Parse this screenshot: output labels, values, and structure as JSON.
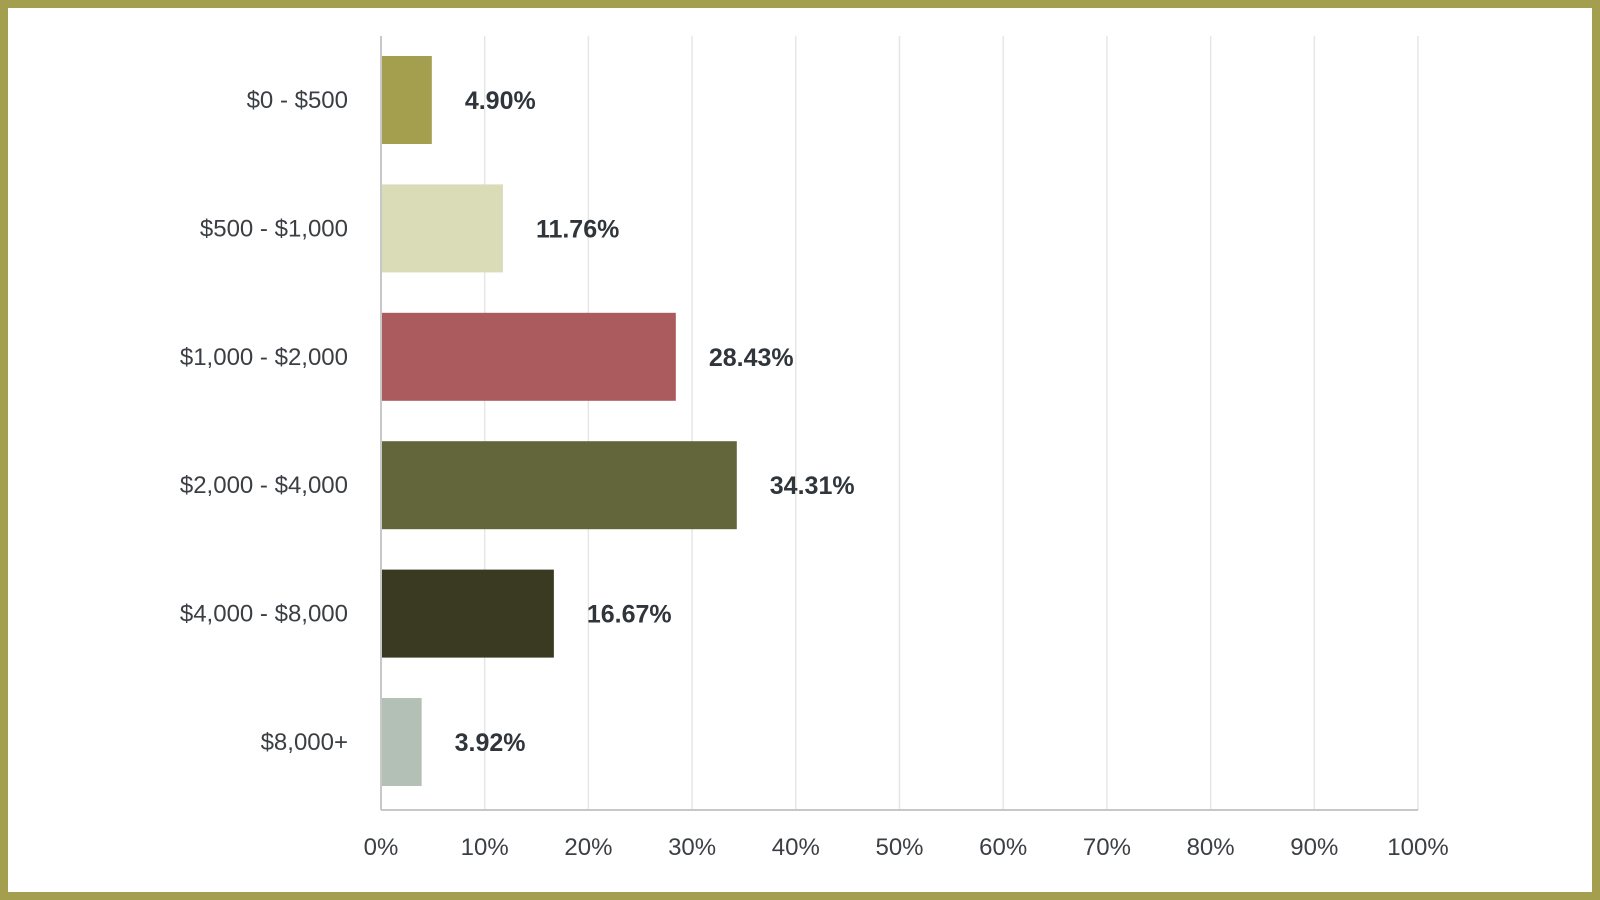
{
  "chart_data": {
    "type": "bar",
    "orientation": "horizontal",
    "title": "",
    "xlabel": "",
    "ylabel": "",
    "categories": [
      "$0 - $500",
      "$500 - $1,000",
      "$1,000 - $2,000",
      "$2,000 - $4,000",
      "$4,000 - $8,000",
      "$8,000+"
    ],
    "values": [
      4.9,
      11.76,
      28.43,
      34.31,
      16.67,
      3.92
    ],
    "value_labels": [
      "4.90%",
      "11.76%",
      "28.43%",
      "34.31%",
      "16.67%",
      "3.92%"
    ],
    "bar_colors": [
      "#a39f4f",
      "#dadcb8",
      "#ab5b5d",
      "#63663b",
      "#393a21",
      "#b3c0b5"
    ],
    "xlim": [
      0,
      100
    ],
    "x_ticks": [
      "0%",
      "10%",
      "20%",
      "30%",
      "40%",
      "50%",
      "60%",
      "70%",
      "80%",
      "90%",
      "100%"
    ],
    "grid": "vertical",
    "legend": "none"
  },
  "colors": {
    "frame_border": "#a39f4f",
    "gridline": "#e6e6e6",
    "axis": "#c8c8c8",
    "text": "#3b3f44"
  }
}
